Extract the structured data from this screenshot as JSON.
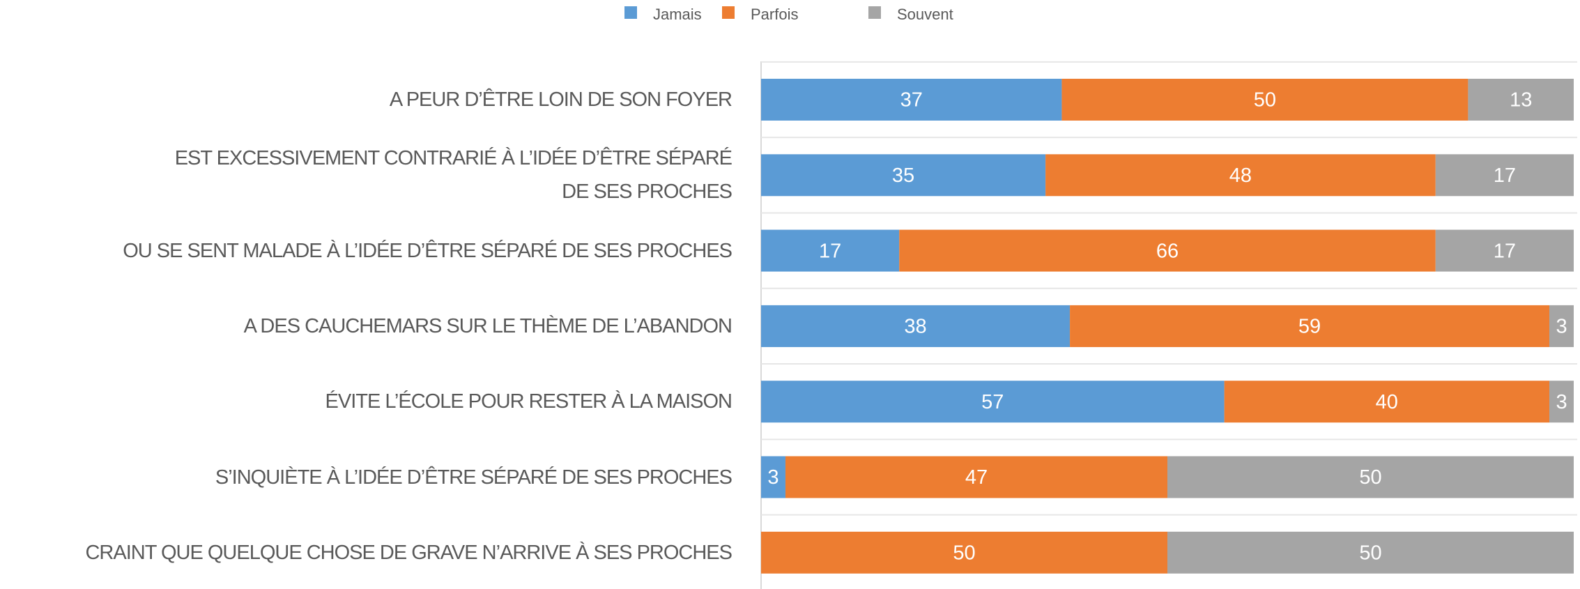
{
  "chart_data": {
    "type": "stacked_barh",
    "categories": [
      "A PEUR D’ÊTRE LOIN DE SON FOYER",
      "EST EXCESSIVEMENT CONTRARIÉ À L’IDÉE D’ÊTRE SÉPARÉ\nDE SES PROCHES",
      "OU SE SENT MALADE À L’IDÉE D’ÊTRE SÉPARÉ DE SES PROCHES",
      "A DES CAUCHEMARS SUR LE THÈME DE L’ABANDON",
      "ÉVITE L’ÉCOLE POUR RESTER À LA MAISON",
      "S’INQUIÈTE  À L’IDÉE D’ÊTRE SÉPARÉ DE SES PROCHES",
      "CRAINT QUE QUELQUE CHOSE DE GRAVE N’ARRIVE À SES PROCHES"
    ],
    "series": [
      {
        "name": "Jamais",
        "color": "#5b9bd5",
        "values": [
          37,
          35,
          17,
          38,
          57,
          3,
          0
        ]
      },
      {
        "name": "Parfois",
        "color": "#ed7d31",
        "values": [
          50,
          48,
          66,
          59,
          40,
          47,
          50
        ]
      },
      {
        "name": "Souvent",
        "color": "#a5a5a5",
        "values": [
          13,
          17,
          17,
          3,
          3,
          50,
          50
        ]
      }
    ],
    "xlim": [
      0,
      100
    ],
    "legend": "top"
  }
}
